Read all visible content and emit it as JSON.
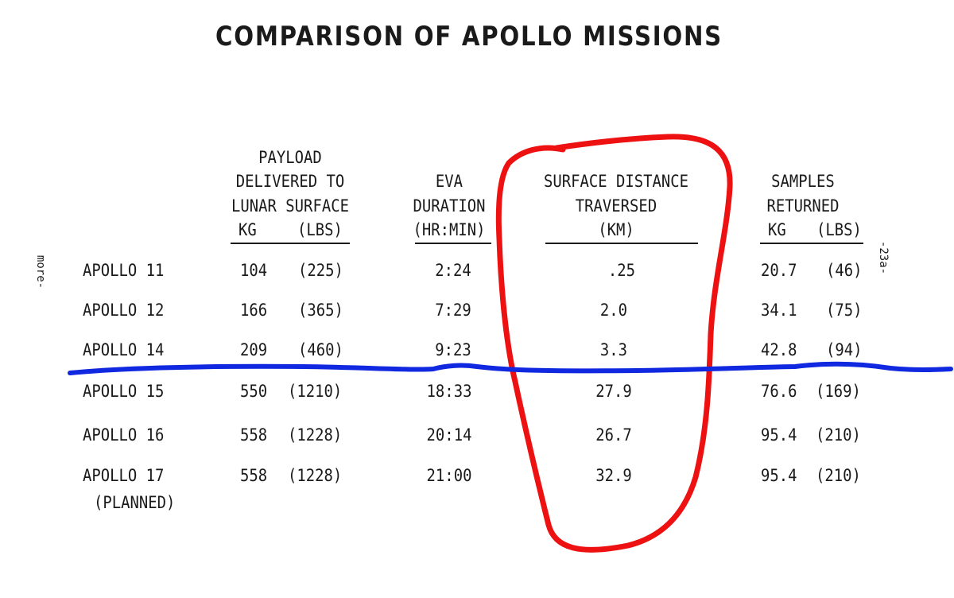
{
  "title": "COMPARISON OF APOLLO MISSIONS",
  "headers": {
    "payload": [
      "PAYLOAD",
      "DELIVERED TO",
      "LUNAR SURFACE"
    ],
    "payload_units": [
      "KG",
      "(LBS)"
    ],
    "eva": [
      "EVA",
      "DURATION",
      "(HR:MIN)"
    ],
    "distance": [
      "SURFACE DISTANCE",
      "TRAVERSED",
      "(KM)"
    ],
    "samples": [
      "SAMPLES",
      "RETURNED"
    ],
    "samples_units": [
      "KG",
      "(LBS)"
    ]
  },
  "rows": [
    {
      "mission": "APOLLO 11",
      "note": "",
      "kg": "104",
      "lbs": "(225)",
      "eva": "2:24",
      "km": ".25",
      "s_kg": "20.7",
      "s_lbs": "(46)"
    },
    {
      "mission": "APOLLO 12",
      "note": "",
      "kg": "166",
      "lbs": "(365)",
      "eva": "7:29",
      "km": "2.0",
      "s_kg": "34.1",
      "s_lbs": "(75)"
    },
    {
      "mission": "APOLLO 14",
      "note": "",
      "kg": "209",
      "lbs": "(460)",
      "eva": "9:23",
      "km": "3.3",
      "s_kg": "42.8",
      "s_lbs": "(94)"
    },
    {
      "mission": "APOLLO 15",
      "note": "",
      "kg": "550",
      "lbs": "(1210)",
      "eva": "18:33",
      "km": "27.9",
      "s_kg": "76.6",
      "s_lbs": "(169)"
    },
    {
      "mission": "APOLLO 16",
      "note": "",
      "kg": "558",
      "lbs": "(1228)",
      "eva": "20:14",
      "km": "26.7",
      "s_kg": "95.4",
      "s_lbs": "(210)"
    },
    {
      "mission": "APOLLO 17",
      "note": "(PLANNED)",
      "kg": "558",
      "lbs": "(1228)",
      "eva": "21:00",
      "km": "32.9",
      "s_kg": "95.4",
      "s_lbs": "(210)"
    }
  ],
  "page_number": "-23a-",
  "left_margin_text": "more-",
  "annotations": {
    "circle_color": "#ee1111",
    "line_color": "#1028e0"
  }
}
